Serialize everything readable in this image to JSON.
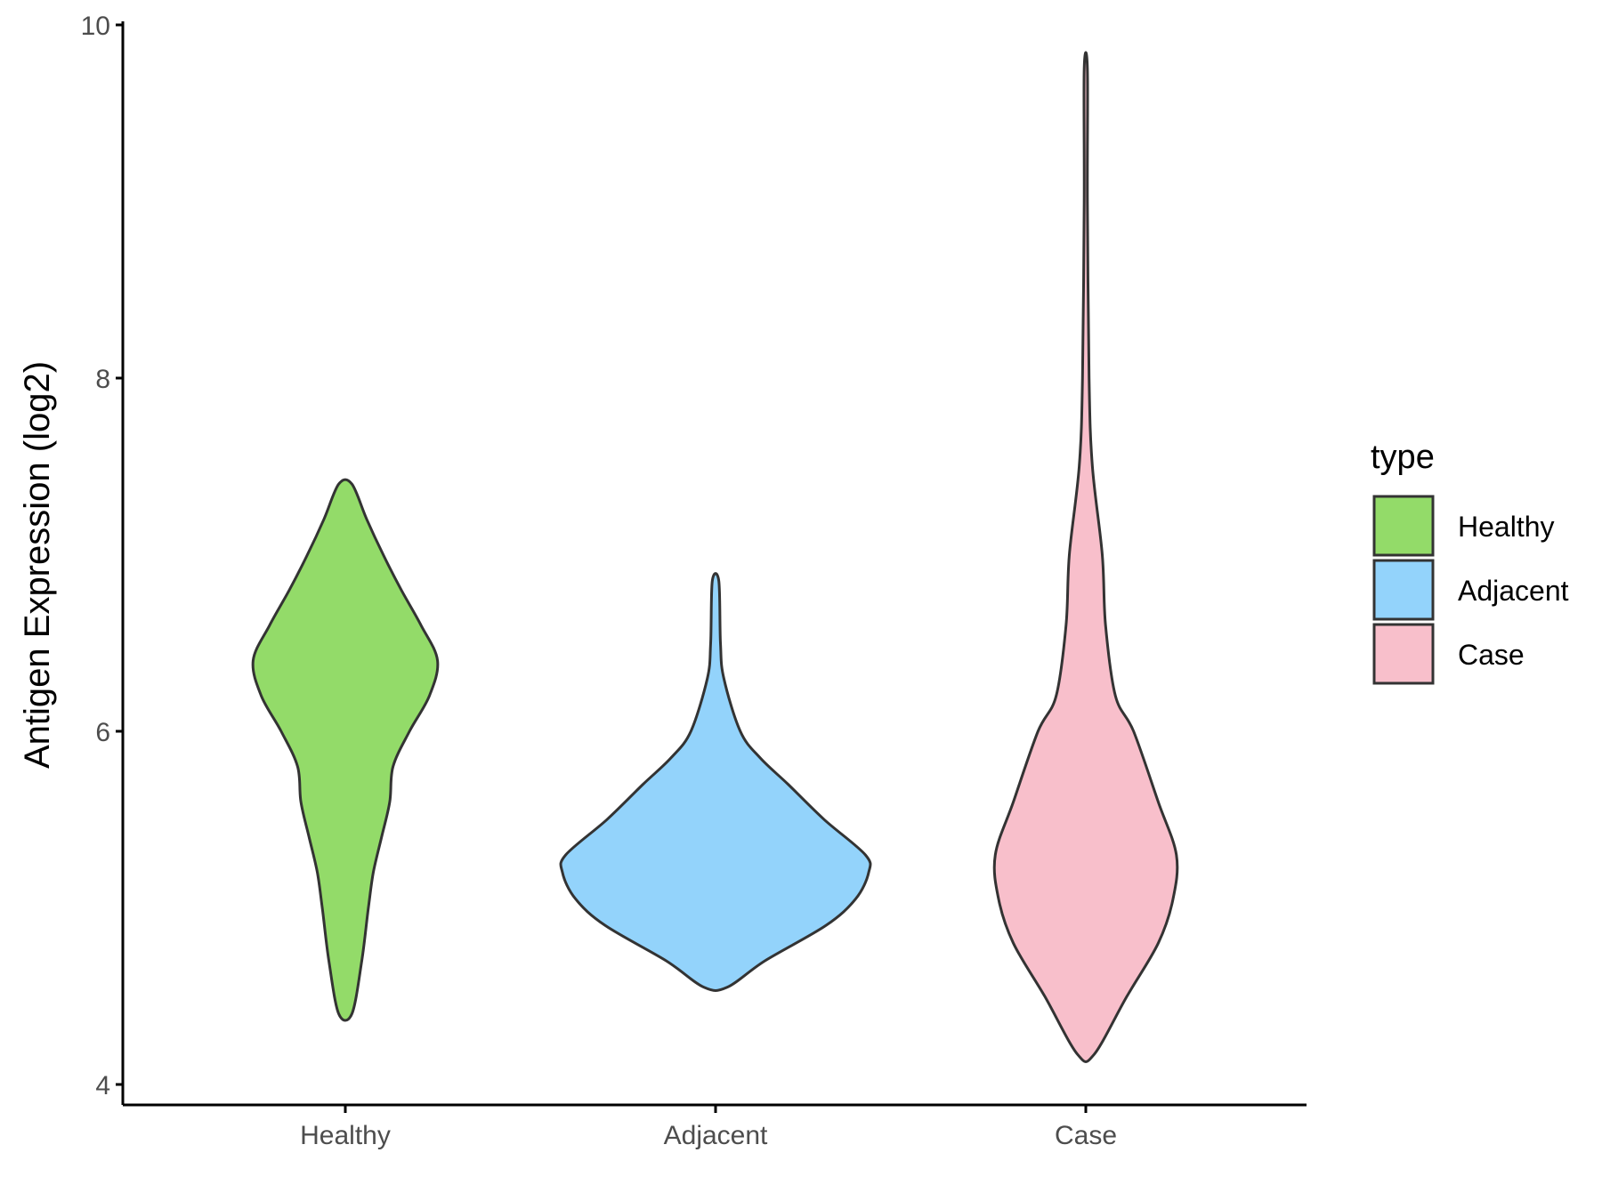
{
  "chart_data": {
    "type": "violin",
    "ylabel": "Antigen Expression (log2)",
    "xlabel": "",
    "ylim": [
      3.9,
      10.05
    ],
    "yticks": [
      4,
      6,
      8,
      10
    ],
    "categories": [
      "Healthy",
      "Adjacent",
      "Case"
    ],
    "legend": {
      "title": "type",
      "position": "right",
      "entries": [
        "Healthy",
        "Adjacent",
        "Case"
      ]
    },
    "grid": false,
    "series": [
      {
        "name": "Healthy",
        "color": "#93db69",
        "min": 4.4,
        "max": 7.4,
        "density": [
          [
            4.4,
            0.04
          ],
          [
            4.7,
            0.1
          ],
          [
            5.0,
            0.14
          ],
          [
            5.2,
            0.17
          ],
          [
            5.4,
            0.22
          ],
          [
            5.6,
            0.27
          ],
          [
            5.8,
            0.29
          ],
          [
            6.0,
            0.39
          ],
          [
            6.2,
            0.51
          ],
          [
            6.4,
            0.56
          ],
          [
            6.6,
            0.46
          ],
          [
            6.8,
            0.34
          ],
          [
            7.0,
            0.23
          ],
          [
            7.2,
            0.13
          ],
          [
            7.4,
            0.04
          ]
        ]
      },
      {
        "name": "Adjacent",
        "color": "#93d3fb",
        "min": 4.55,
        "max": 6.85,
        "density": [
          [
            4.55,
            0.07
          ],
          [
            4.7,
            0.3
          ],
          [
            4.9,
            0.67
          ],
          [
            5.05,
            0.85
          ],
          [
            5.2,
            0.93
          ],
          [
            5.3,
            0.91
          ],
          [
            5.5,
            0.66
          ],
          [
            5.7,
            0.44
          ],
          [
            5.85,
            0.27
          ],
          [
            6.0,
            0.15
          ],
          [
            6.3,
            0.05
          ],
          [
            6.5,
            0.03
          ],
          [
            6.85,
            0.02
          ]
        ]
      },
      {
        "name": "Case",
        "color": "#f8bfcb",
        "min": 4.17,
        "max": 9.75,
        "density": [
          [
            4.17,
            0.05
          ],
          [
            4.5,
            0.25
          ],
          [
            4.8,
            0.44
          ],
          [
            5.05,
            0.53
          ],
          [
            5.3,
            0.55
          ],
          [
            5.6,
            0.44
          ],
          [
            6.0,
            0.29
          ],
          [
            6.2,
            0.18
          ],
          [
            6.6,
            0.12
          ],
          [
            7.0,
            0.1
          ],
          [
            7.5,
            0.04
          ],
          [
            8.0,
            0.02
          ],
          [
            9.0,
            0.01
          ],
          [
            9.75,
            0.01
          ]
        ]
      }
    ]
  }
}
